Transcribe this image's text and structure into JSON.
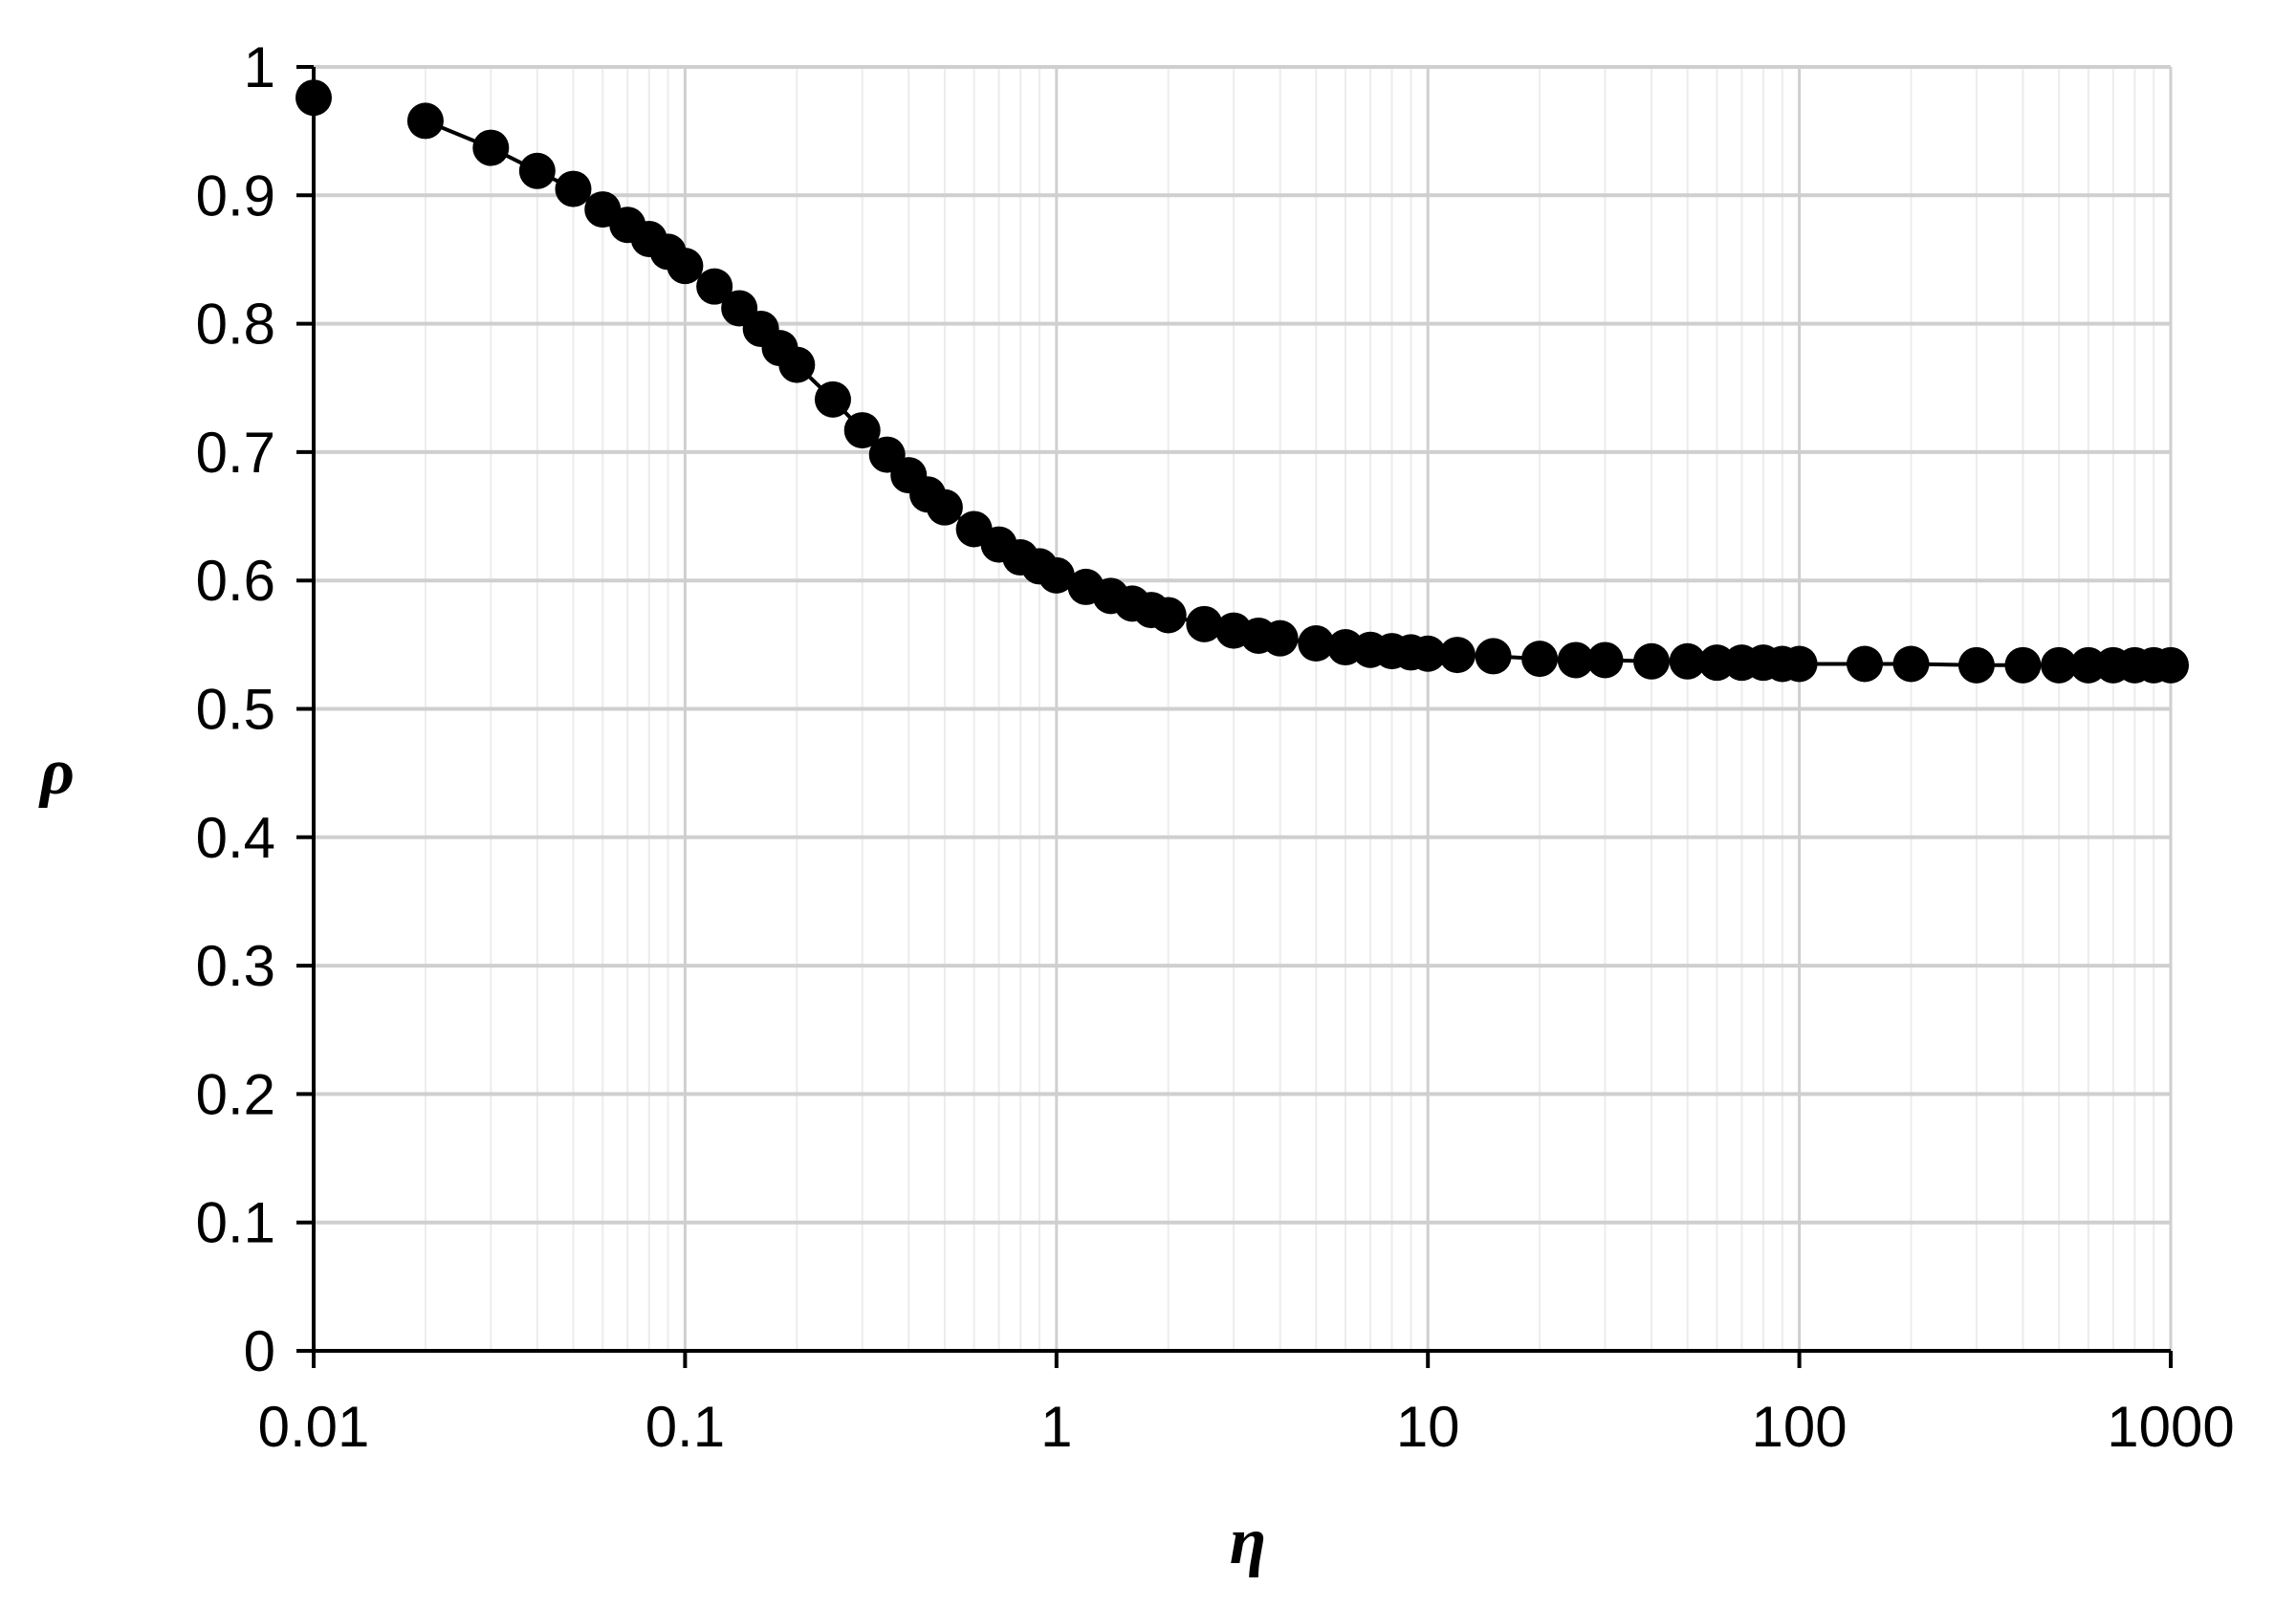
{
  "chart_data": {
    "type": "scatter",
    "title": "",
    "xlabel": "η",
    "ylabel": "ρ",
    "x_scale": "log",
    "xlim": [
      0.01,
      1000
    ],
    "ylim": [
      0,
      1
    ],
    "x_ticks": [
      "0.01",
      "0.1",
      "1",
      "10",
      "100",
      "1000"
    ],
    "y_ticks": [
      "0",
      "0.1",
      "0.2",
      "0.3",
      "0.4",
      "0.5",
      "0.6",
      "0.7",
      "0.8",
      "0.9",
      "1"
    ],
    "grid": true,
    "legend": "none",
    "marker": "filled-circle",
    "color": "#000000",
    "series": [
      {
        "points": [
          [
            0.01,
            0.976
          ],
          [
            0.02,
            0.958
          ],
          [
            0.03,
            0.937
          ],
          [
            0.04,
            0.919
          ],
          [
            0.05,
            0.905
          ],
          [
            0.06,
            0.889
          ],
          [
            0.07,
            0.877
          ],
          [
            0.08,
            0.866
          ],
          [
            0.09,
            0.856
          ],
          [
            0.1,
            0.845
          ],
          [
            0.12,
            0.829
          ],
          [
            0.14,
            0.812
          ],
          [
            0.16,
            0.796
          ],
          [
            0.18,
            0.781
          ],
          [
            0.2,
            0.768
          ],
          [
            0.25,
            0.741
          ],
          [
            0.3,
            0.717
          ],
          [
            0.35,
            0.698
          ],
          [
            0.4,
            0.682
          ],
          [
            0.45,
            0.667
          ],
          [
            0.5,
            0.657
          ],
          [
            0.6,
            0.64
          ],
          [
            0.7,
            0.628
          ],
          [
            0.8,
            0.618
          ],
          [
            0.9,
            0.611
          ],
          [
            1,
            0.604
          ],
          [
            1.2,
            0.595
          ],
          [
            1.4,
            0.588
          ],
          [
            1.6,
            0.582
          ],
          [
            1.8,
            0.577
          ],
          [
            2,
            0.573
          ],
          [
            2.5,
            0.566
          ],
          [
            3,
            0.561
          ],
          [
            3.5,
            0.557
          ],
          [
            4,
            0.555
          ],
          [
            5,
            0.551
          ],
          [
            6,
            0.548
          ],
          [
            7,
            0.546
          ],
          [
            8,
            0.545
          ],
          [
            9,
            0.544
          ],
          [
            10,
            0.543
          ],
          [
            12,
            0.542
          ],
          [
            15,
            0.541
          ],
          [
            20,
            0.539
          ],
          [
            25,
            0.538
          ],
          [
            30,
            0.538
          ],
          [
            40,
            0.537
          ],
          [
            50,
            0.537
          ],
          [
            60,
            0.536
          ],
          [
            70,
            0.536
          ],
          [
            80,
            0.536
          ],
          [
            90,
            0.535
          ],
          [
            100,
            0.535
          ],
          [
            150,
            0.535
          ],
          [
            200,
            0.535
          ],
          [
            300,
            0.534
          ],
          [
            400,
            0.534
          ],
          [
            500,
            0.534
          ],
          [
            600,
            0.534
          ],
          [
            700,
            0.534
          ],
          [
            800,
            0.534
          ],
          [
            900,
            0.534
          ],
          [
            1000,
            0.534
          ]
        ]
      }
    ]
  }
}
